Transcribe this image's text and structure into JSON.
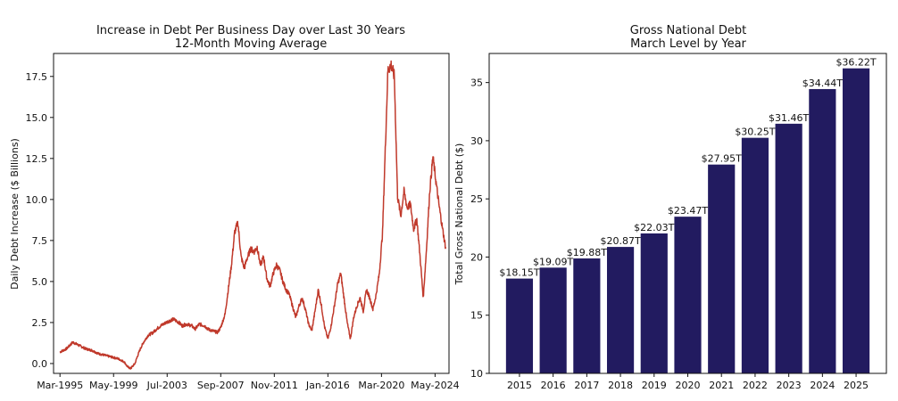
{
  "chart_data": [
    {
      "type": "line",
      "title": "Increase in Debt Per Business Day over Last 30 Years",
      "subtitle": "12-Month Moving Average",
      "xlabel": "",
      "ylabel": "Daily Debt Increase ($ Billions)",
      "xlim": [
        "1994-09",
        "2025-06"
      ],
      "ylim": [
        -0.6,
        18.9
      ],
      "grid": false,
      "color": "#c0392b",
      "xticks": [
        "Mar-1995",
        "May-1999",
        "Jul-2003",
        "Sep-2007",
        "Nov-2011",
        "Jan-2016",
        "Mar-2020",
        "May-2024"
      ],
      "yticks": [
        "0.0",
        "2.5",
        "5.0",
        "7.5",
        "10.0",
        "12.5",
        "15.0",
        "17.5"
      ],
      "series": [
        {
          "x": [
            "1995-03",
            "1995-09",
            "1996-03",
            "1996-06",
            "1996-09",
            "1997-03",
            "1997-09",
            "1998-03",
            "1998-09",
            "1999-03",
            "1999-09",
            "2000-03",
            "2000-06",
            "2000-09",
            "2001-01",
            "2001-03",
            "2001-06",
            "2001-09",
            "2002-01",
            "2002-06",
            "2002-09",
            "2003-01",
            "2003-06",
            "2003-09",
            "2004-01",
            "2004-06",
            "2004-09",
            "2005-01",
            "2005-06",
            "2005-09",
            "2006-01",
            "2006-06",
            "2006-09",
            "2007-01",
            "2007-06",
            "2007-09",
            "2008-01",
            "2008-04",
            "2008-07",
            "2008-10",
            "2009-01",
            "2009-04",
            "2009-07",
            "2009-09",
            "2010-01",
            "2010-04",
            "2010-07",
            "2010-10",
            "2011-01",
            "2011-04",
            "2011-07",
            "2011-10",
            "2012-01",
            "2012-04",
            "2012-07",
            "2012-10",
            "2013-01",
            "2013-04",
            "2013-07",
            "2013-10",
            "2014-01",
            "2014-04",
            "2014-07",
            "2014-10",
            "2015-01",
            "2015-04",
            "2015-07",
            "2015-10",
            "2016-01",
            "2016-04",
            "2016-07",
            "2016-10",
            "2017-01",
            "2017-04",
            "2017-07",
            "2017-10",
            "2018-01",
            "2018-04",
            "2018-07",
            "2018-10",
            "2019-01",
            "2019-04",
            "2019-07",
            "2019-10",
            "2020-01",
            "2020-04",
            "2020-06",
            "2020-09",
            "2020-12",
            "2021-03",
            "2021-06",
            "2021-09",
            "2021-12",
            "2022-03",
            "2022-06",
            "2022-09",
            "2022-12",
            "2023-03",
            "2023-06",
            "2023-09",
            "2023-12",
            "2024-03",
            "2024-06",
            "2024-09",
            "2024-12",
            "2025-03"
          ],
          "y": [
            0.7,
            0.9,
            1.3,
            1.2,
            1.1,
            0.9,
            0.8,
            0.6,
            0.5,
            0.4,
            0.3,
            0.1,
            -0.2,
            -0.3,
            0.0,
            0.4,
            0.9,
            1.3,
            1.7,
            1.9,
            2.1,
            2.3,
            2.5,
            2.6,
            2.7,
            2.5,
            2.3,
            2.4,
            2.3,
            2.1,
            2.4,
            2.3,
            2.1,
            2.0,
            1.9,
            2.2,
            3.0,
            4.5,
            6.0,
            8.0,
            8.6,
            6.5,
            5.8,
            6.3,
            7.0,
            6.8,
            7.1,
            6.0,
            6.5,
            5.2,
            4.7,
            5.5,
            6.0,
            5.7,
            5.0,
            4.5,
            4.2,
            3.5,
            2.8,
            3.5,
            4.0,
            3.3,
            2.4,
            2.0,
            3.2,
            4.5,
            3.5,
            2.2,
            1.5,
            2.3,
            3.5,
            4.8,
            5.5,
            4.0,
            2.5,
            1.5,
            2.8,
            3.5,
            4.0,
            3.2,
            4.5,
            4.0,
            3.3,
            4.2,
            5.5,
            8.0,
            12.0,
            17.9,
            18.2,
            17.5,
            10.2,
            9.0,
            10.5,
            9.5,
            9.7,
            8.2,
            8.8,
            6.5,
            4.0,
            7.0,
            10.5,
            12.6,
            11.0,
            9.5,
            8.2,
            7.0
          ]
        }
      ]
    },
    {
      "type": "bar",
      "title": "Gross National Debt",
      "subtitle": "March Level by Year",
      "xlabel": "",
      "ylabel": "Total Gross National Debt ($)",
      "ylim": [
        10,
        37.5
      ],
      "grid": false,
      "color": "#221b60",
      "categories": [
        "2015",
        "2016",
        "2017",
        "2018",
        "2019",
        "2020",
        "2021",
        "2022",
        "2023",
        "2024",
        "2025"
      ],
      "values": [
        18.15,
        19.09,
        19.88,
        20.87,
        22.03,
        23.47,
        27.95,
        30.25,
        31.46,
        34.44,
        36.22
      ],
      "labels": [
        "$18.15T",
        "$19.09T",
        "$19.88T",
        "$20.87T",
        "$22.03T",
        "$23.47T",
        "$27.95T",
        "$30.25T",
        "$31.46T",
        "$34.44T",
        "$36.22T"
      ],
      "yticks": [
        "10",
        "15",
        "20",
        "25",
        "30",
        "35"
      ]
    }
  ]
}
